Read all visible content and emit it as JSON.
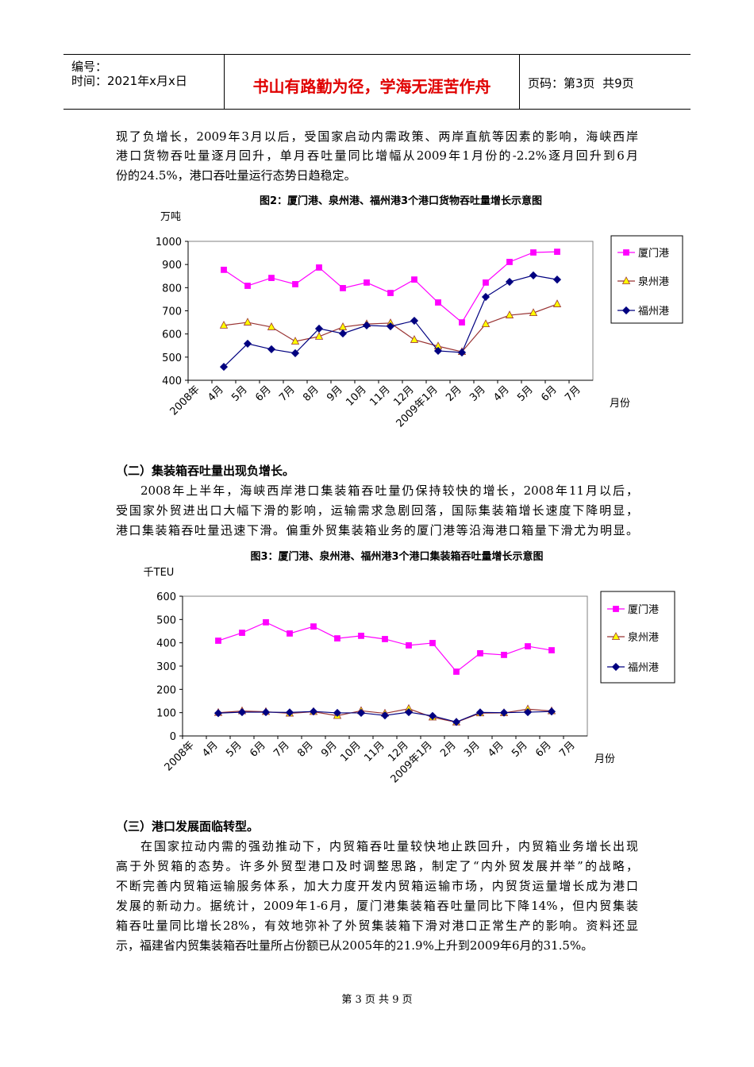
{
  "header": {
    "number_label": "编号：",
    "time": "时间：2021年x月x日",
    "motto": "书山有路勤为径，学海无涯苦作舟",
    "page": "页码：第3页  共9页"
  },
  "intro_lines": [
    "现了负增长，2009年3月以后，受国家启动内需政策、两岸直航等因素的影响，海峡西岸",
    "港口货物吞吐量逐月回升，单月吞吐量同比增幅从2009年1月份的-2.2%逐月回升到6月",
    "份的24.5%，港口吞吐量运行态势日趋稳定。"
  ],
  "section2": {
    "heading": "（二）集装箱吞吐量出现负增长。",
    "lines": [
      "2008年上半年，海峡西岸港口集装箱吞吐量仍保持较快的增长，2008年11月以后，",
      "受国家外贸进出口大幅下滑的影响，运输需求急剧回落，国际集装箱增长速度下降明显，",
      "港口集装箱吞吐量迅速下滑。偏重外贸集装箱业务的厦门港等沿海港口箱量下滑尤为明显。"
    ]
  },
  "section3": {
    "heading": "（三）港口发展面临转型。",
    "lines": [
      "在国家拉动内需的强劲推动下，内贸箱吞吐量较快地止跌回升，内贸箱业务增长出现",
      "高于外贸箱的态势。许多外贸型港口及时调整思路，制定了“内外贸发展并举”的战略，",
      "不断完善内贸箱运输服务体系，加大力度开发内贸箱运输市场，内贸货运量增长成为港口",
      "发展的新动力。据统计，2009年1-6月，厦门港集装箱吞吐量同比下降14%，但内贸集装",
      "箱吞吐量同比增长28%，有效地弥补了外贸集装箱下滑对港口正常生产的影响。资料还显",
      "示，福建省内贸集装箱吞吐量所占份额已从2005年的21.9%上升到2009年6月的31.5%。"
    ]
  },
  "footer": "第 3 页 共 9 页",
  "chart_data": [
    {
      "type": "line",
      "title": "图2：厦门港、泉州港、福州港3个港口货物吞吐量增长示意图",
      "y_label": "万吨",
      "x_label": "月份",
      "categories": [
        "2008年",
        "4月",
        "5月",
        "6月",
        "7月",
        "8月",
        "9月",
        "10月",
        "11月",
        "12月",
        "2009年1月",
        "2月",
        "3月",
        "4月",
        "5月",
        "6月",
        "7月"
      ],
      "ylim": [
        400,
        1000
      ],
      "yticks": [
        400,
        500,
        600,
        700,
        800,
        900,
        1000
      ],
      "grid": false,
      "legend": "right",
      "series": [
        {
          "name": "厦门港",
          "color": "#ff00ff",
          "marker": "square",
          "marker_color": "#ff00ff",
          "values": [
            null,
            877,
            808,
            842,
            815,
            887,
            798,
            822,
            777,
            835,
            736,
            650,
            822,
            911,
            952,
            955,
            null
          ]
        },
        {
          "name": "泉州港",
          "color": "#993333",
          "marker": "triangle",
          "marker_color": "#ffff00",
          "values": [
            null,
            637,
            650,
            630,
            568,
            589,
            630,
            643,
            647,
            575,
            547,
            523,
            643,
            681,
            691,
            729,
            null
          ]
        },
        {
          "name": "福州港",
          "color": "#000080",
          "marker": "diamond",
          "marker_color": "#000080",
          "values": [
            null,
            458,
            558,
            534,
            517,
            623,
            602,
            637,
            633,
            657,
            527,
            520,
            760,
            825,
            853,
            835,
            null
          ]
        }
      ]
    },
    {
      "type": "line",
      "title": "图3：厦门港、泉州港、福州港3个港口集装箱吞吐量增长示意图",
      "y_label": "千TEU",
      "x_label": "月份",
      "categories": [
        "2008年",
        "4月",
        "5月",
        "6月",
        "7月",
        "8月",
        "9月",
        "10月",
        "11月",
        "12月",
        "2009年1月",
        "2月",
        "3月",
        "4月",
        "5月",
        "6月",
        "7月"
      ],
      "ylim": [
        0,
        600
      ],
      "yticks": [
        0,
        100,
        200,
        300,
        400,
        500,
        600
      ],
      "grid": false,
      "legend": "right",
      "series": [
        {
          "name": "厦门港",
          "color": "#ff00ff",
          "marker": "square",
          "marker_color": "#ff00ff",
          "values": [
            null,
            409,
            443,
            488,
            440,
            470,
            419,
            430,
            416,
            389,
            399,
            276,
            355,
            348,
            385,
            368,
            null
          ]
        },
        {
          "name": "泉州港",
          "color": "#993333",
          "marker": "triangle",
          "marker_color": "#ffff00",
          "values": [
            null,
            100,
            107,
            104,
            97,
            104,
            87,
            108,
            97,
            117,
            80,
            59,
            98,
            99,
            115,
            107,
            null
          ]
        },
        {
          "name": "福州港",
          "color": "#000080",
          "marker": "diamond",
          "marker_color": "#000080",
          "values": [
            null,
            98,
            102,
            102,
            101,
            105,
            99,
            99,
            88,
            102,
            86,
            60,
            101,
            100,
            102,
            105,
            null
          ]
        }
      ]
    }
  ]
}
